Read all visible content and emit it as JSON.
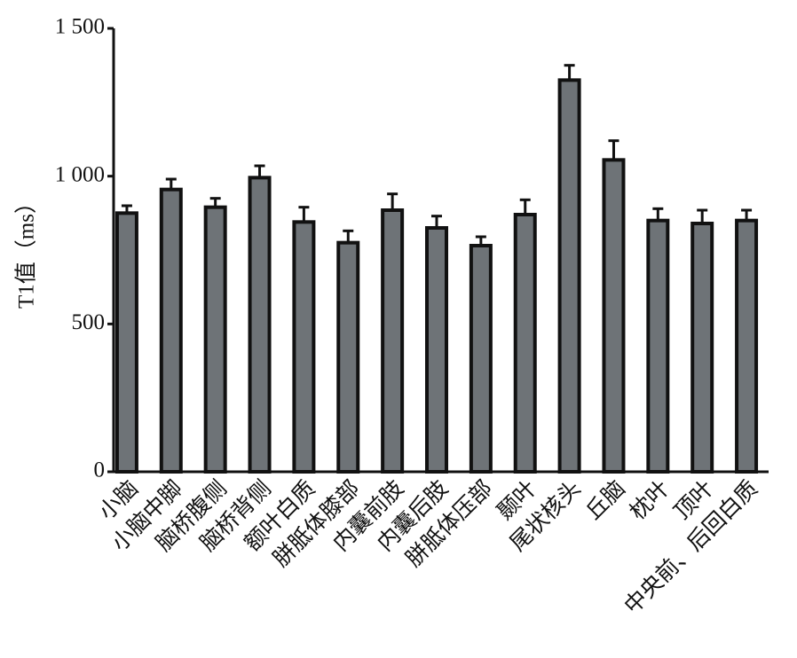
{
  "chart_data": {
    "type": "bar",
    "y_label": "T1值（ms）",
    "categories": [
      "小脑",
      "小脑中脚",
      "脑桥腹侧",
      "脑桥背侧",
      "额叶白质",
      "胼胝体膝部",
      "内囊前肢",
      "内囊后肢",
      "胼胝体压部",
      "颞叶",
      "尾状核头",
      "丘脑",
      "枕叶",
      "顶叶",
      "中央前、后回白质"
    ],
    "values": [
      875,
      955,
      895,
      995,
      845,
      775,
      885,
      825,
      765,
      870,
      1325,
      1055,
      850,
      840,
      850
    ],
    "errors": [
      25,
      35,
      30,
      40,
      50,
      40,
      55,
      40,
      30,
      50,
      50,
      65,
      40,
      45,
      35
    ],
    "color": "#6e7377",
    "ylim": [
      0,
      1500
    ],
    "yticks": [
      0,
      500,
      {
        "value": 1000,
        "label": "1 000"
      },
      {
        "value": 1500,
        "label": "1 500"
      }
    ]
  }
}
